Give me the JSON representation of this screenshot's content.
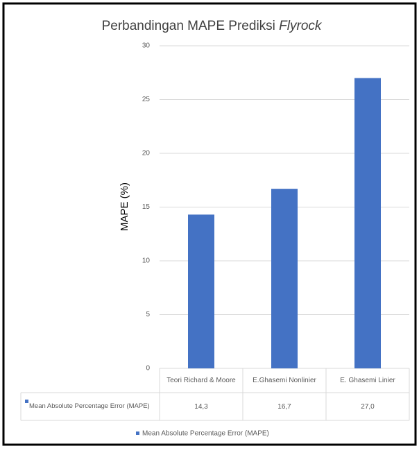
{
  "chart_data": {
    "type": "bar",
    "title": "Perbandingan MAPE Prediksi",
    "title_italic": "Flyrock",
    "y_label": "MAPE (%)",
    "categories": [
      "Teori Richard & Moore",
      "E.Ghasemi Nonlinier",
      "E. Ghasemi Linier"
    ],
    "series": [
      {
        "name": "Mean Absolute Percentage Error (MAPE)",
        "color": "#4472c4",
        "values": [
          14.3,
          16.7,
          27.0
        ],
        "value_labels": [
          "14,3",
          "16,7",
          "27,0"
        ]
      }
    ],
    "ylim": [
      0,
      30
    ],
    "yticks": [
      0,
      5,
      10,
      15,
      20,
      25,
      30
    ],
    "grid": true,
    "legend": "bottom"
  }
}
